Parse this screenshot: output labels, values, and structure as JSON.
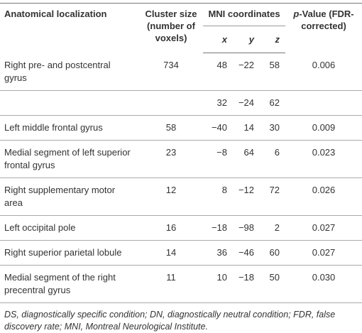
{
  "header": {
    "localization": "Anatomical localization",
    "cluster": "Cluster size (number of voxels)",
    "mni": "MNI coordinates",
    "x": "x",
    "y": "y",
    "z": "z",
    "p_italic": "p",
    "p_rest": "-Value (FDR-corrected)"
  },
  "rows": [
    [
      "Right pre- and postcentral gyrus",
      "734",
      "48",
      "−22",
      "58",
      "0.006"
    ],
    [
      null,
      null,
      "32",
      "−24",
      "62",
      null
    ],
    [
      "Left middle frontal gyrus",
      "58",
      "−40",
      "14",
      "30",
      "0.009"
    ],
    [
      "Medial segment of left superior frontal gyrus",
      "23",
      "−8",
      "64",
      "6",
      "0.023"
    ],
    [
      "Right supplementary motor area",
      "12",
      "8",
      "−12",
      "72",
      "0.026"
    ],
    [
      "Left occipital pole",
      "16",
      "−18",
      "−98",
      "2",
      "0.027"
    ],
    [
      "Right superior parietal lobule",
      "14",
      "36",
      "−46",
      "60",
      "0.027"
    ],
    [
      "Medial segment of the right precentral gyrus",
      "11",
      "10",
      "−18",
      "50",
      "0.030"
    ]
  ],
  "footnote": "DS, diagnostically specific condition; DN, diagnostically neutral condition; FDR, false discovery rate; MNI, Montreal Neurological Institute."
}
